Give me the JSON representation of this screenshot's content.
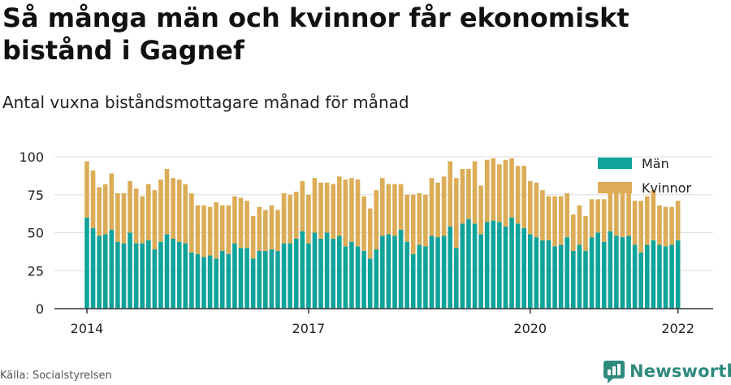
{
  "title": "Så många män och kvinnor får ekonomiskt bistånd i Gagnef",
  "subtitle": "Antal vuxna biståndsmottagare månad för månad",
  "source": "Källa: Socialstyrelsen",
  "brand": {
    "name": "Newsworthy",
    "icon": "newsworthy-logo-icon"
  },
  "colors": {
    "men": "#0fa39b",
    "women": "#dcac56",
    "grid": "#dddddd",
    "axis": "#333333"
  },
  "chart_data": {
    "type": "bar",
    "stacked": true,
    "xlabel": "",
    "ylabel": "",
    "ylim": [
      0,
      100
    ],
    "yticks": [
      0,
      25,
      50,
      75,
      100
    ],
    "xticks": [
      {
        "label": "2014",
        "index": 0
      },
      {
        "label": "2017",
        "index": 36
      },
      {
        "label": "2020",
        "index": 72
      },
      {
        "label": "2022",
        "index": 96
      }
    ],
    "start": "2014-01",
    "legend_position": "top-right",
    "grid": true,
    "series": [
      {
        "name": "Män",
        "color": "#0fa39b",
        "values": [
          60,
          53,
          48,
          49,
          52,
          44,
          43,
          50,
          43,
          43,
          45,
          39,
          44,
          49,
          46,
          44,
          43,
          37,
          36,
          34,
          35,
          33,
          38,
          36,
          43,
          40,
          40,
          33,
          38,
          38,
          39,
          38,
          43,
          43,
          46,
          51,
          43,
          50,
          46,
          50,
          46,
          48,
          41,
          44,
          41,
          38,
          33,
          39,
          48,
          49,
          48,
          52,
          44,
          36,
          42,
          41,
          48,
          47,
          48,
          54,
          40,
          56,
          59,
          56,
          49,
          57,
          58,
          57,
          54,
          60,
          56,
          53,
          49,
          47,
          45,
          45,
          41,
          42,
          47,
          38,
          42,
          38,
          47,
          50,
          44,
          51,
          48,
          47,
          48,
          42,
          37,
          42,
          45,
          42,
          41,
          42,
          45
        ]
      },
      {
        "name": "Kvinnor",
        "color": "#dcac56",
        "values": [
          37,
          38,
          32,
          33,
          37,
          32,
          33,
          34,
          36,
          31,
          37,
          39,
          41,
          43,
          40,
          41,
          39,
          39,
          32,
          34,
          32,
          37,
          30,
          32,
          31,
          33,
          31,
          28,
          29,
          27,
          29,
          27,
          33,
          32,
          31,
          33,
          32,
          36,
          37,
          33,
          36,
          39,
          44,
          42,
          44,
          36,
          33,
          39,
          38,
          33,
          34,
          30,
          31,
          39,
          34,
          34,
          38,
          36,
          39,
          43,
          46,
          36,
          33,
          41,
          32,
          41,
          41,
          38,
          44,
          39,
          38,
          41,
          35,
          36,
          33,
          29,
          33,
          32,
          29,
          24,
          26,
          23,
          25,
          22,
          28,
          28,
          30,
          32,
          31,
          29,
          34,
          32,
          33,
          26,
          26,
          25,
          26
        ]
      }
    ]
  }
}
